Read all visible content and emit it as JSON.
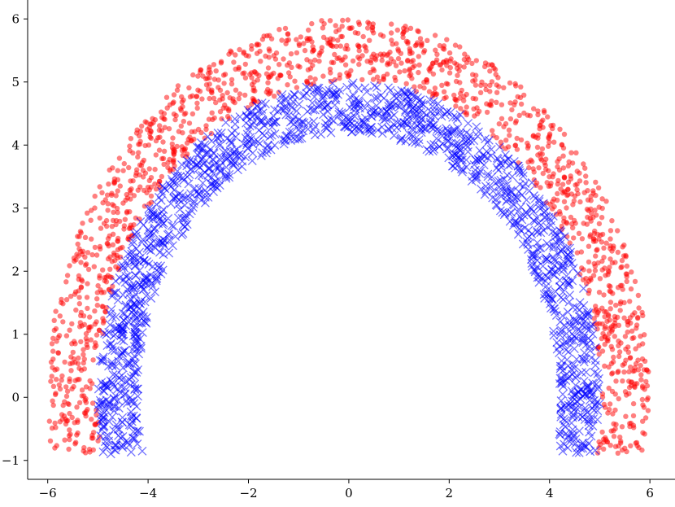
{
  "chart_data": {
    "type": "scatter",
    "title": "",
    "xlabel": "",
    "ylabel": "",
    "xlim": [
      -6.4,
      6.5
    ],
    "ylim": [
      -1.3,
      6.3
    ],
    "xticks": [
      -6,
      -4,
      -2,
      0,
      2,
      4,
      6
    ],
    "yticks": [
      -1,
      0,
      1,
      2,
      3,
      4,
      5,
      6
    ],
    "xtick_labels": [
      "−6",
      "−4",
      "−2",
      "0",
      "2",
      "4",
      "6"
    ],
    "ytick_labels": [
      "−1",
      "0",
      "1",
      "2",
      "3",
      "4",
      "5",
      "6"
    ],
    "grid": false,
    "legend": "none",
    "series": [
      {
        "marker": "circle",
        "color": "#ff0000",
        "alpha": 0.5,
        "shape": "annulus-upper-half",
        "center": [
          0,
          0
        ],
        "radius_range": [
          5.0,
          6.0
        ],
        "y_range": [
          -0.9,
          6.0
        ],
        "n_points": 1500
      },
      {
        "marker": "x",
        "color": "#0000ff",
        "alpha": 0.55,
        "shape": "annulus-upper-half",
        "center": [
          0,
          0
        ],
        "radius_range": [
          4.2,
          5.0
        ],
        "y_range": [
          -0.9,
          5.0
        ],
        "n_points": 1500
      }
    ]
  }
}
